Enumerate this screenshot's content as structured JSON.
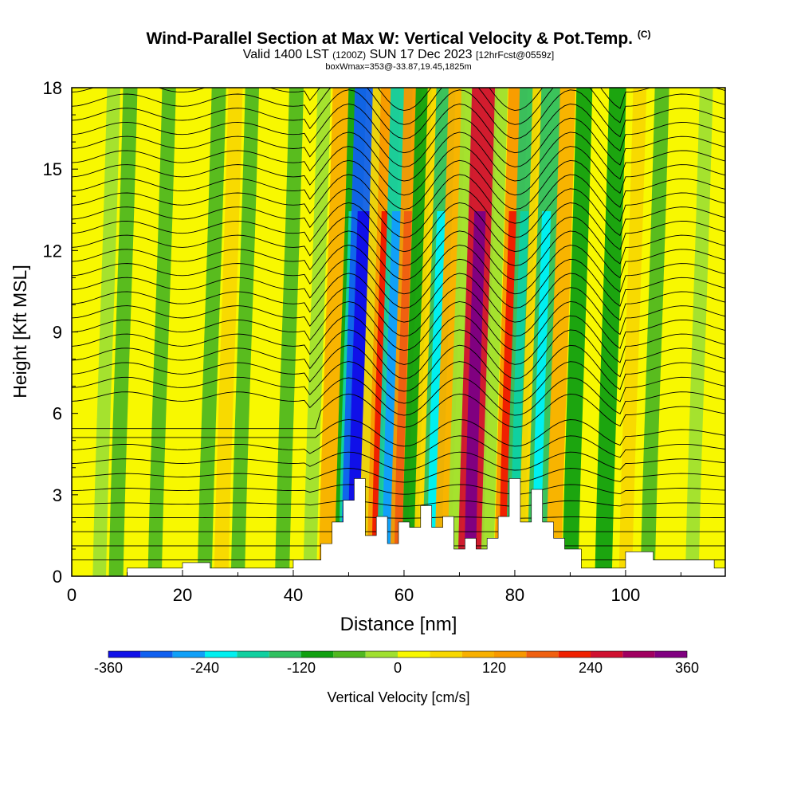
{
  "header": {
    "title": "Wind-Parallel Section at Max W: Vertical Velocity & Pot.Temp.",
    "title_tag": "(C)",
    "valid_prefix": "Valid 1400 LST",
    "valid_utc": "(1200Z)",
    "valid_date": "SUN 17 Dec 2023",
    "forecast": "[12hrFcst@0559z]",
    "box_info": "boxWmax=353@-33.87,19.45,1825m"
  },
  "chart_data": {
    "type": "heatmap",
    "title": "Wind-Parallel Section at Max W: Vertical Velocity & Pot.Temp.",
    "xlabel": "Distance [nm]",
    "ylabel": "Height [Kft MSL]",
    "xlim": [
      0,
      118
    ],
    "ylim": [
      0,
      18
    ],
    "x_ticks": [
      0,
      20,
      40,
      60,
      80,
      100
    ],
    "y_ticks": [
      0,
      3,
      6,
      9,
      12,
      15,
      18
    ],
    "colorbar": {
      "label": "Vertical Velocity [cm/s]",
      "range": [
        -360,
        360
      ],
      "ticks": [
        -360,
        -240,
        -120,
        0,
        120,
        240,
        360
      ],
      "colors": [
        "#1010e8",
        "#1060f0",
        "#10a0f8",
        "#00f0f0",
        "#10d0a0",
        "#30c060",
        "#10a010",
        "#50b820",
        "#a0e030",
        "#f8f800",
        "#f8d800",
        "#f8b000",
        "#f89800",
        "#f06010",
        "#f02000",
        "#d01030",
        "#a00060",
        "#800080"
      ]
    },
    "terrain": [
      {
        "x": 0,
        "h": 0
      },
      {
        "x": 10,
        "h": 0.3
      },
      {
        "x": 20,
        "h": 0.5
      },
      {
        "x": 25,
        "h": 0.3
      },
      {
        "x": 30,
        "h": 0.3
      },
      {
        "x": 40,
        "h": 0.6
      },
      {
        "x": 45,
        "h": 1.2
      },
      {
        "x": 47,
        "h": 2.0
      },
      {
        "x": 49,
        "h": 2.8
      },
      {
        "x": 51,
        "h": 3.6
      },
      {
        "x": 53,
        "h": 1.5
      },
      {
        "x": 55,
        "h": 2.2
      },
      {
        "x": 57,
        "h": 1.2
      },
      {
        "x": 59,
        "h": 2.0
      },
      {
        "x": 61,
        "h": 1.8
      },
      {
        "x": 63,
        "h": 2.6
      },
      {
        "x": 65,
        "h": 1.8
      },
      {
        "x": 67,
        "h": 2.2
      },
      {
        "x": 69,
        "h": 1.0
      },
      {
        "x": 71,
        "h": 1.4
      },
      {
        "x": 73,
        "h": 1.0
      },
      {
        "x": 75,
        "h": 1.4
      },
      {
        "x": 77,
        "h": 2.2
      },
      {
        "x": 79,
        "h": 3.6
      },
      {
        "x": 81,
        "h": 2.0
      },
      {
        "x": 83,
        "h": 3.2
      },
      {
        "x": 85,
        "h": 2.0
      },
      {
        "x": 87,
        "h": 1.4
      },
      {
        "x": 89,
        "h": 1.0
      },
      {
        "x": 92,
        "h": 0.3
      },
      {
        "x": 100,
        "h": 0.9
      },
      {
        "x": 105,
        "h": 0.6
      },
      {
        "x": 110,
        "h": 0.6
      },
      {
        "x": 116,
        "h": 0.3
      },
      {
        "x": 118,
        "h": 0
      }
    ],
    "w_bands": [
      {
        "x": 3,
        "w": 30
      },
      {
        "x": 5,
        "w": -40
      },
      {
        "x": 8,
        "w": -60
      },
      {
        "x": 12,
        "w": 20
      },
      {
        "x": 15,
        "w": -50
      },
      {
        "x": 19,
        "w": 10
      },
      {
        "x": 24,
        "w": -60
      },
      {
        "x": 27,
        "w": 60
      },
      {
        "x": 30,
        "w": -50
      },
      {
        "x": 35,
        "w": 10
      },
      {
        "x": 38,
        "w": -60
      },
      {
        "x": 43,
        "w": -40
      },
      {
        "x": 46,
        "w": 90
      },
      {
        "x": 49,
        "w": -120
      },
      {
        "x": 51,
        "w": -300
      },
      {
        "x": 53,
        "w": 40
      },
      {
        "x": 55,
        "w": 150
      },
      {
        "x": 57,
        "w": -200
      },
      {
        "x": 59,
        "w": 120
      },
      {
        "x": 61,
        "w": -90
      },
      {
        "x": 63,
        "w": 60
      },
      {
        "x": 65,
        "w": -150
      },
      {
        "x": 67,
        "w": 110
      },
      {
        "x": 69,
        "w": -40
      },
      {
        "x": 72,
        "w": 270
      },
      {
        "x": 75,
        "w": -30
      },
      {
        "x": 78,
        "w": 150
      },
      {
        "x": 80,
        "w": -140
      },
      {
        "x": 82,
        "w": 70
      },
      {
        "x": 84,
        "w": -160
      },
      {
        "x": 87,
        "w": 80
      },
      {
        "x": 90,
        "w": -90
      },
      {
        "x": 93,
        "w": 30
      },
      {
        "x": 96,
        "w": -110
      },
      {
        "x": 100,
        "w": 40
      },
      {
        "x": 104,
        "w": -60
      },
      {
        "x": 108,
        "w": 20
      },
      {
        "x": 112,
        "w": -40
      },
      {
        "x": 116,
        "w": 10
      }
    ],
    "theta_contour_count": 34
  }
}
